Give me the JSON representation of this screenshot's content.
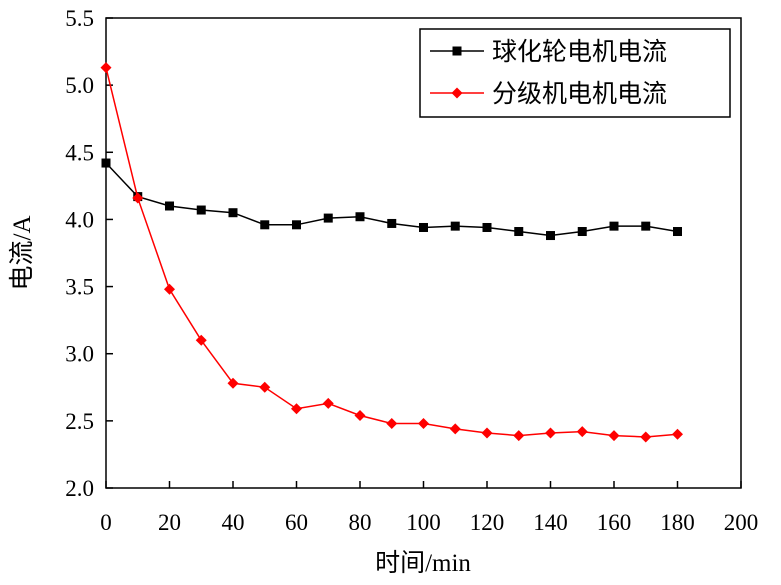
{
  "chart_data": {
    "type": "line",
    "xlabel": "时间/min",
    "ylabel": "电流/A",
    "xlim": [
      0,
      200
    ],
    "ylim": [
      2.0,
      5.5
    ],
    "x_ticks": [
      "0",
      "20",
      "40",
      "60",
      "80",
      "100",
      "120",
      "140",
      "160",
      "180",
      "200"
    ],
    "y_ticks": [
      "2.0",
      "2.5",
      "3.0",
      "3.5",
      "4.0",
      "4.5",
      "5.0",
      "5.5"
    ],
    "grid": false,
    "legend_position": "top-right",
    "series": [
      {
        "name": "球化轮电机电流",
        "color": "#000000",
        "marker": "square",
        "x": [
          0,
          10,
          20,
          30,
          40,
          50,
          60,
          70,
          80,
          90,
          100,
          110,
          120,
          130,
          140,
          150,
          160,
          170,
          180
        ],
        "y": [
          4.42,
          4.17,
          4.1,
          4.07,
          4.05,
          3.96,
          3.96,
          4.01,
          4.02,
          3.97,
          3.94,
          3.95,
          3.94,
          3.91,
          3.88,
          3.91,
          3.95,
          3.95,
          3.91
        ]
      },
      {
        "name": "分级机电机电流",
        "color": "#ff0000",
        "marker": "diamond",
        "x": [
          0,
          10,
          20,
          30,
          40,
          50,
          60,
          70,
          80,
          90,
          100,
          110,
          120,
          130,
          140,
          150,
          160,
          170,
          180
        ],
        "y": [
          5.13,
          4.16,
          3.48,
          3.1,
          2.78,
          2.75,
          2.59,
          2.63,
          2.54,
          2.48,
          2.48,
          2.44,
          2.41,
          2.39,
          2.41,
          2.42,
          2.39,
          2.38,
          2.4
        ]
      }
    ]
  }
}
